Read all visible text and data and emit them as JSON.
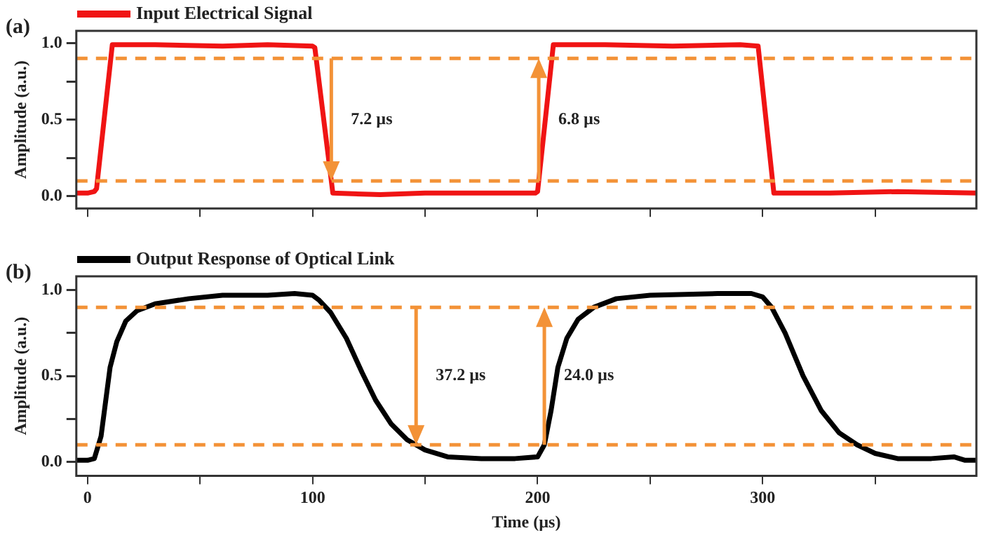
{
  "chart_data": [
    {
      "type": "line",
      "title": "(a)",
      "ylabel": "Amplitude (a.u.)",
      "legend": "top left",
      "tick_labels": "y",
      "grid": false,
      "marker": "none",
      "line_style": "solid",
      "xlim": [
        -5,
        395
      ],
      "xticks": [
        0,
        {
          "value": 50,
          "label": null
        },
        100,
        {
          "value": 150,
          "label": null
        },
        200,
        {
          "value": 250,
          "label": null
        },
        300,
        {
          "value": 350,
          "label": null
        }
      ],
      "ylim": [
        -0.08,
        1.08
      ],
      "yticks": [
        {
          "value": 0,
          "label": "0.0"
        },
        {
          "value": 0.25,
          "label": null
        },
        0.5,
        {
          "value": 0.75,
          "label": null
        },
        {
          "value": 1,
          "label": "1.0"
        }
      ],
      "series": [
        {
          "name": "Input Electrical Signal",
          "color": "#f01414",
          "x": [
            -5,
            0,
            3,
            4,
            11,
            30,
            60,
            80,
            100,
            101,
            109,
            130,
            150,
            180,
            199,
            200,
            207,
            230,
            260,
            290,
            298,
            305,
            330,
            360,
            395
          ],
          "values": [
            0.02,
            0.02,
            0.03,
            0.05,
            0.99,
            0.99,
            0.98,
            0.99,
            0.98,
            0.97,
            0.02,
            0.01,
            0.02,
            0.02,
            0.02,
            0.03,
            0.99,
            0.99,
            0.98,
            0.99,
            0.98,
            0.02,
            0.02,
            0.03,
            0.02
          ]
        }
      ],
      "ref_lines": [
        {
          "axis": "y",
          "value": 0.9,
          "color": "#f39237",
          "line_style": "dashed"
        },
        {
          "axis": "y",
          "value": 0.1,
          "color": "#f39237",
          "line_style": "dashed"
        }
      ],
      "annotations": [
        "7.2 µs",
        "6.8 µs"
      ]
    },
    {
      "type": "line",
      "title": "(b)",
      "xlabel": "Time (µs)",
      "ylabel": "Amplitude (a.u.)",
      "legend": "top left",
      "grid": false,
      "marker": "none",
      "line_style": "solid",
      "xlim": [
        -5,
        395
      ],
      "xticks": [
        0,
        {
          "value": 50,
          "label": null
        },
        100,
        {
          "value": 150,
          "label": null
        },
        200,
        {
          "value": 250,
          "label": null
        },
        300,
        {
          "value": 350,
          "label": null
        }
      ],
      "ylim": [
        -0.08,
        1.08
      ],
      "yticks": [
        {
          "value": 0,
          "label": "0.0"
        },
        {
          "value": 0.25,
          "label": null
        },
        0.5,
        {
          "value": 0.75,
          "label": null
        },
        {
          "value": 1,
          "label": "1.0"
        }
      ],
      "series": [
        {
          "name": "Output Response of Optical Link",
          "color": "#000000",
          "x": [
            -5,
            0,
            3,
            6,
            8,
            10,
            13,
            17,
            22,
            30,
            45,
            60,
            80,
            92,
            100,
            103,
            108,
            115,
            122,
            128,
            135,
            142,
            150,
            160,
            175,
            190,
            200,
            203,
            206,
            209,
            213,
            218,
            225,
            235,
            250,
            280,
            295,
            300,
            304,
            310,
            318,
            326,
            334,
            342,
            350,
            360,
            375,
            385,
            390,
            395
          ],
          "values": [
            0.01,
            0.01,
            0.02,
            0.15,
            0.35,
            0.55,
            0.7,
            0.82,
            0.88,
            0.92,
            0.95,
            0.97,
            0.97,
            0.98,
            0.97,
            0.94,
            0.87,
            0.72,
            0.52,
            0.36,
            0.22,
            0.13,
            0.07,
            0.03,
            0.02,
            0.02,
            0.03,
            0.1,
            0.3,
            0.55,
            0.72,
            0.83,
            0.9,
            0.95,
            0.97,
            0.98,
            0.98,
            0.96,
            0.9,
            0.75,
            0.5,
            0.3,
            0.17,
            0.1,
            0.05,
            0.02,
            0.02,
            0.03,
            0.01,
            0.01
          ]
        }
      ],
      "ref_lines": [
        {
          "axis": "y",
          "value": 0.9,
          "color": "#f39237",
          "line_style": "dashed"
        },
        {
          "axis": "y",
          "value": 0.1,
          "color": "#f39237",
          "line_style": "dashed"
        }
      ],
      "annotations": [
        "37.2 µs",
        "24.0 µs"
      ]
    }
  ]
}
